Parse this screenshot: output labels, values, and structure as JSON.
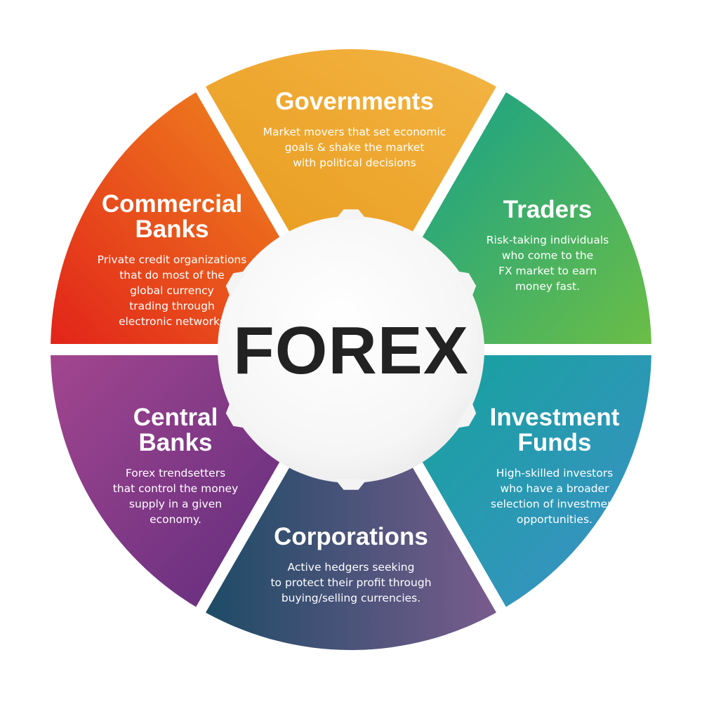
{
  "center": {
    "title": "FOREX"
  },
  "segments": [
    {
      "id": "governments",
      "title": "Governments",
      "description": "Market movers that set economic\ngoals & shake the market\nwith political decisions",
      "colors": [
        "#f3b544",
        "#e89a1c"
      ]
    },
    {
      "id": "traders",
      "title": "Traders",
      "description": "Risk-taking individuals\nwho come to the\nFX market to earn\nmoney fast.",
      "colors": [
        "#14a08c",
        "#6cbe45"
      ]
    },
    {
      "id": "investment-funds",
      "title": "Investment\nFunds",
      "description": "High-skilled investors\nwho have a broader\nselection of investment\nopportunities.",
      "colors": [
        "#13a39b",
        "#3f8fc9"
      ]
    },
    {
      "id": "corporations",
      "title": "Corporations",
      "description": "Active hedgers seeking\nto protect their profit through\nbuying/selling currencies.",
      "colors": [
        "#1c4b66",
        "#7a5c8e"
      ]
    },
    {
      "id": "central-banks",
      "title": "Central\nBanks",
      "description": "Forex trendsetters\nthat control the money\nsupply in a given\neconomy.",
      "colors": [
        "#a3468f",
        "#5e2c7d"
      ]
    },
    {
      "id": "commercial-banks",
      "title": "Commercial\nBanks",
      "description": "Private credit organizations\nthat do most of the\nglobal currency\ntrading through\nelectronic networks",
      "colors": [
        "#f08a1e",
        "#e2231a"
      ]
    }
  ]
}
